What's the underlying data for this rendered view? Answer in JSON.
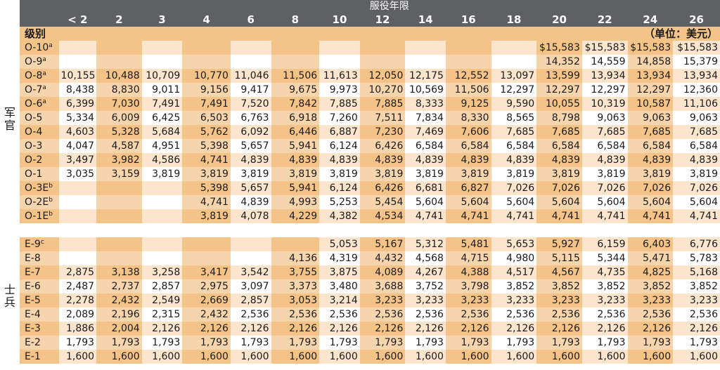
{
  "header": {
    "title": "服役年限",
    "grade_label": "级别",
    "unit": "（单位：美元）",
    "columns": [
      "< 2",
      "2",
      "3",
      "4",
      "6",
      "8",
      "10",
      "12",
      "14",
      "16",
      "18",
      "20",
      "22",
      "24",
      "26"
    ]
  },
  "side_labels": {
    "officer": "军官",
    "enlisted": "士兵"
  },
  "officers": [
    {
      "grade": "O-10",
      "sup": "a",
      "values": [
        "",
        "",
        "",
        "",
        "",
        "",
        "",
        "",
        "",
        "",
        "",
        "$15,583",
        "$15,583",
        "$15,583",
        "$15,583"
      ]
    },
    {
      "grade": "O-9",
      "sup": "a",
      "values": [
        "",
        "",
        "",
        "",
        "",
        "",
        "",
        "",
        "",
        "",
        "",
        "14,352",
        "14,559",
        "14,858",
        "15,379"
      ]
    },
    {
      "grade": "O-8",
      "sup": "a",
      "values": [
        "10,155",
        "10,488",
        "10,709",
        "10,770",
        "11,046",
        "11,506",
        "11,613",
        "12,050",
        "12,175",
        "12,552",
        "13,097",
        "13,599",
        "13,934",
        "13,934",
        "13,934"
      ]
    },
    {
      "grade": "O-7",
      "sup": "a",
      "values": [
        "8,438",
        "8,830",
        "9,011",
        "9,156",
        "9,417",
        "9,675",
        "9,973",
        "10,270",
        "10,569",
        "11,506",
        "12,297",
        "12,297",
        "12,297",
        "12,297",
        "12,360"
      ]
    },
    {
      "grade": "O-6",
      "sup": "a",
      "values": [
        "6,399",
        "7,030",
        "7,491",
        "7,491",
        "7,520",
        "7,842",
        "7,885",
        "7,885",
        "8,333",
        "9,125",
        "9,590",
        "10,055",
        "10,319",
        "10,587",
        "11,106"
      ]
    },
    {
      "grade": "O-5",
      "sup": "",
      "values": [
        "5,334",
        "6,009",
        "6,425",
        "6,503",
        "6,763",
        "6,918",
        "7,260",
        "7,511",
        "7,834",
        "8,330",
        "8,565",
        "8,798",
        "9,063",
        "9,063",
        "9,063"
      ]
    },
    {
      "grade": "O-4",
      "sup": "",
      "values": [
        "4,603",
        "5,328",
        "5,684",
        "5,762",
        "6,092",
        "6,446",
        "6,887",
        "7,230",
        "7,469",
        "7,606",
        "7,685",
        "7,685",
        "7,685",
        "7,685",
        "7,685"
      ]
    },
    {
      "grade": "O-3",
      "sup": "",
      "values": [
        "4,047",
        "4,587",
        "4,951",
        "5,398",
        "5,657",
        "5,941",
        "6,124",
        "6,426",
        "6,584",
        "6,584",
        "6,584",
        "6,584",
        "6,584",
        "6,584",
        "6,584"
      ]
    },
    {
      "grade": "O-2",
      "sup": "",
      "values": [
        "3,497",
        "3,982",
        "4,586",
        "4,741",
        "4,839",
        "4,839",
        "4,839",
        "4,839",
        "4,839",
        "4,839",
        "4,839",
        "4,839",
        "4,839",
        "4,839",
        "4,839"
      ]
    },
    {
      "grade": "O-1",
      "sup": "",
      "values": [
        "3,035",
        "3,159",
        "3,819",
        "3,819",
        "3,819",
        "3,819",
        "3,819",
        "3,819",
        "3,819",
        "3,819",
        "3,819",
        "3,819",
        "3,819",
        "3,819",
        "3,819"
      ]
    },
    {
      "grade": "O-3E",
      "sup": "b",
      "values": [
        "",
        "",
        "",
        "5,398",
        "5,657",
        "5,941",
        "6,124",
        "6,426",
        "6,681",
        "6,827",
        "7,026",
        "7,026",
        "7,026",
        "7,026",
        "7,026"
      ]
    },
    {
      "grade": "O-2E",
      "sup": "b",
      "values": [
        "",
        "",
        "",
        "4,741",
        "4,839",
        "4,993",
        "5,253",
        "5,454",
        "5,604",
        "5,604",
        "5,604",
        "5,604",
        "5,604",
        "5,604",
        "5,604"
      ]
    },
    {
      "grade": "O-1E",
      "sup": "b",
      "values": [
        "",
        "",
        "",
        "3,819",
        "4,078",
        "4,229",
        "4,382",
        "4,534",
        "4,741",
        "4,741",
        "4,741",
        "4,741",
        "4,741",
        "4,741",
        "4,741"
      ]
    }
  ],
  "enlisted": [
    {
      "grade": "E-9",
      "sup": "c",
      "values": [
        "",
        "",
        "",
        "",
        "",
        "",
        "5,053",
        "5,167",
        "5,312",
        "5,481",
        "5,653",
        "5,927",
        "6,159",
        "6,403",
        "6,776"
      ]
    },
    {
      "grade": "E-8",
      "sup": "",
      "values": [
        "",
        "",
        "",
        "",
        "",
        "4,136",
        "4,319",
        "4,432",
        "4,568",
        "4,715",
        "4,980",
        "5,115",
        "5,344",
        "5,471",
        "5,783"
      ]
    },
    {
      "grade": "E-7",
      "sup": "",
      "values": [
        "2,875",
        "3,138",
        "3,258",
        "3,417",
        "3,542",
        "3,755",
        "3,875",
        "4,089",
        "4,267",
        "4,388",
        "4,517",
        "4,567",
        "4,735",
        "4,825",
        "5,168"
      ]
    },
    {
      "grade": "E-6",
      "sup": "",
      "values": [
        "2,487",
        "2,737",
        "2,857",
        "2,975",
        "3,097",
        "3,373",
        "3,480",
        "3,688",
        "3,752",
        "3,798",
        "3,852",
        "3,852",
        "3,852",
        "3,852",
        "3,852"
      ]
    },
    {
      "grade": "E-5",
      "sup": "",
      "values": [
        "2,278",
        "2,432",
        "2,549",
        "2,669",
        "2,857",
        "3,053",
        "3,214",
        "3,233",
        "3,233",
        "3,233",
        "3,233",
        "3,233",
        "3,233",
        "3,233",
        "3,233"
      ]
    },
    {
      "grade": "E-4",
      "sup": "",
      "values": [
        "2,089",
        "2,196",
        "2,315",
        "2,432",
        "2,536",
        "2,536",
        "2,536",
        "2,536",
        "2,536",
        "2,536",
        "2,536",
        "2,536",
        "2,536",
        "2,536",
        "2,536"
      ]
    },
    {
      "grade": "E-3",
      "sup": "",
      "values": [
        "1,886",
        "2,004",
        "2,126",
        "2,126",
        "2,126",
        "2,126",
        "2,126",
        "2,126",
        "2,126",
        "2,126",
        "2,126",
        "2,126",
        "2,126",
        "2,126",
        "2,126"
      ]
    },
    {
      "grade": "E-2",
      "sup": "",
      "values": [
        "1,793",
        "1,793",
        "1,793",
        "1,793",
        "1,793",
        "1,793",
        "1,793",
        "1,793",
        "1,793",
        "1,793",
        "1,793",
        "1,793",
        "1,793",
        "1,793",
        "1,793"
      ]
    },
    {
      "grade": "E-1",
      "sup": "",
      "values": [
        "1,600",
        "1,600",
        "1,600",
        "1,600",
        "1,600",
        "1,600",
        "1,600",
        "1,600",
        "1,600",
        "1,600",
        "1,600",
        "1,600",
        "1,600",
        "1,600",
        "1,600"
      ]
    }
  ]
}
